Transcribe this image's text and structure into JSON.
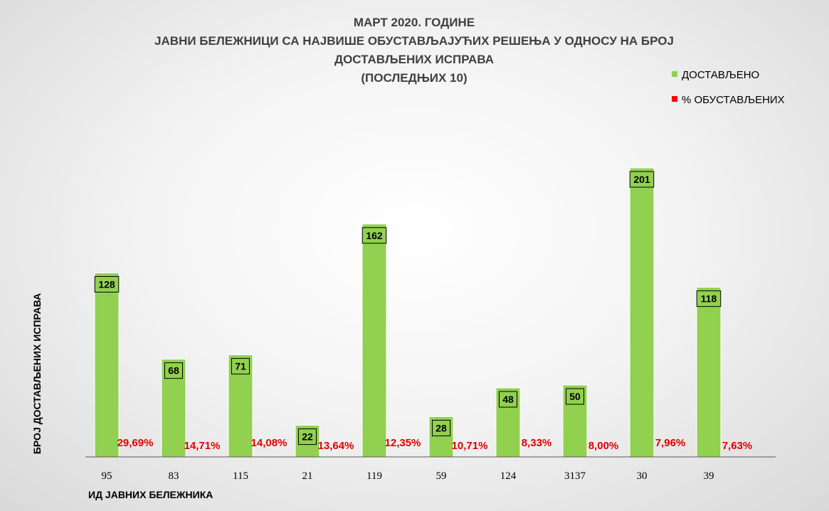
{
  "chart_data": {
    "type": "bar",
    "title_lines": [
      "МАРТ 2020. ГОДИНЕ",
      "ЈАВНИ БЕЛЕЖНИЦИ СА НАЈВИШЕ ОБУСТАВЉАЈУЋИХ РЕШЕЊА У ОДНОСУ НА БРОЈ",
      "ДОСТАВЉЕНИХ ИСПРАВА",
      "(ПОСЛЕДЊИХ 10)"
    ],
    "xlabel": "ИД ЈАВНИХ БЕЛЕЖНИКА",
    "ylabel": "БРОЈ ДОСТАВЉЕНИХ ИСПРАВА",
    "categories": [
      "95",
      "83",
      "115",
      "21",
      "119",
      "59",
      "124",
      "3137",
      "30",
      "39"
    ],
    "series": [
      {
        "name": "ДОСТАВЉЕНО",
        "color": "#92d050",
        "values": [
          128,
          68,
          71,
          22,
          162,
          28,
          48,
          50,
          201,
          118
        ],
        "labels": [
          "128",
          "68",
          "71",
          "22",
          "162",
          "28",
          "48",
          "50",
          "201",
          "118"
        ]
      },
      {
        "name": "% ОБУСТАВЉЕНИХ",
        "color": "#ff0000",
        "values": [
          29.69,
          14.71,
          14.08,
          13.64,
          12.35,
          10.71,
          8.33,
          8.0,
          7.96,
          7.63
        ],
        "labels": [
          "29,69%",
          "14,71%",
          "14,08%",
          "13,64%",
          "12,35%",
          "10,71%",
          "8,33%",
          "8,00%",
          "7,96%",
          "7,63%"
        ]
      }
    ],
    "ylim": [
      0,
      201
    ],
    "grid": false,
    "legend": "top-right"
  }
}
